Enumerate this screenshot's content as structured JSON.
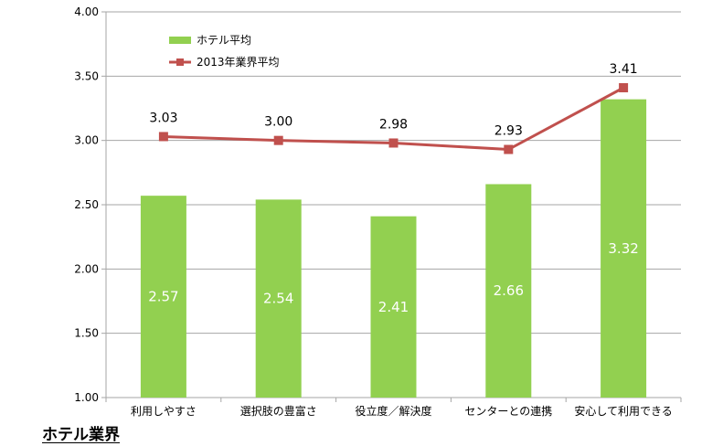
{
  "caption": "ホテル業界",
  "chart_data": {
    "type": "bar",
    "categories": [
      "利用しやすさ",
      "選択肢の豊富さ",
      "役立度／解決度",
      "センターとの連携",
      "安心して利用できる"
    ],
    "series": [
      {
        "name": "ホテル平均",
        "type": "bar",
        "values": [
          2.57,
          2.54,
          2.41,
          2.66,
          3.32
        ],
        "color": "#92d050",
        "label_color": "#ffffff"
      },
      {
        "name": "2013年業界平均",
        "type": "line",
        "values": [
          3.03,
          3.0,
          2.98,
          2.93,
          3.41
        ],
        "color": "#c0504d"
      }
    ],
    "ylim": [
      1.0,
      4.0
    ],
    "yticks": [
      "1.00",
      "1.50",
      "2.00",
      "2.50",
      "3.00",
      "3.50",
      "4.00"
    ],
    "grid": true,
    "legend": "top-left"
  }
}
